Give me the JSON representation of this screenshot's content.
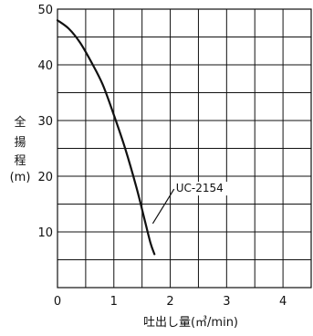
{
  "chart_data": {
    "type": "line",
    "xlabel": "吐出し量(㎥/min)",
    "ylabel_chars": [
      "全",
      "揚",
      "程",
      "(m)"
    ],
    "xlim": [
      0,
      4.5
    ],
    "ylim": [
      0,
      50
    ],
    "x_ticks": [
      0,
      1,
      2,
      3,
      4
    ],
    "x_tick_labels": [
      "0",
      "1",
      "2",
      "3",
      "4"
    ],
    "y_ticks": [
      10,
      20,
      30,
      40,
      50
    ],
    "y_tick_labels": [
      "10",
      "20",
      "30",
      "40",
      "50"
    ],
    "grid": true,
    "series": [
      {
        "name": "UC-2154",
        "color": "#111111",
        "x": [
          0.0,
          0.2,
          0.4,
          0.6,
          0.8,
          1.0,
          1.2,
          1.4,
          1.55,
          1.65,
          1.72
        ],
        "y": [
          48,
          46.5,
          44,
          40.5,
          36.5,
          31,
          25,
          18,
          12,
          8,
          6
        ]
      }
    ],
    "annotations": [
      {
        "text": "UC-2154",
        "x": 2.1,
        "y": 17.2,
        "leader_to": [
          1.69,
          11.5
        ]
      }
    ]
  }
}
